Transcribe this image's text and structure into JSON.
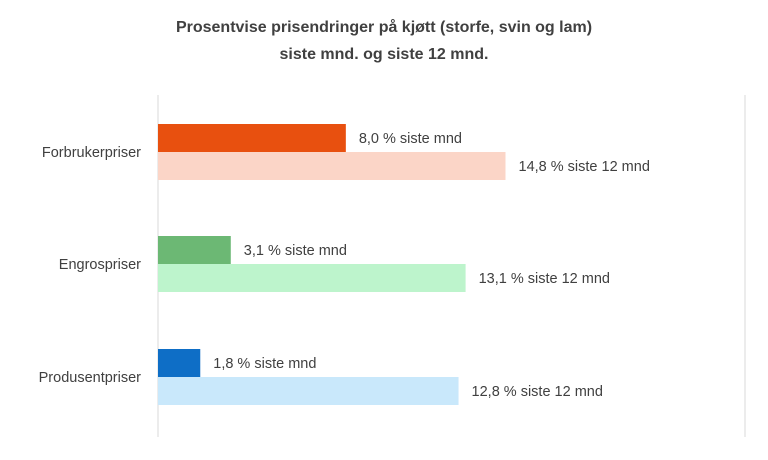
{
  "chart_data": {
    "type": "bar",
    "orientation": "horizontal",
    "title": [
      "Prosentvise prisendringer på kjøtt (storfe, svin og lam)",
      "siste mnd. og siste 12 mnd."
    ],
    "categories": [
      "Forbrukerpriser",
      "Engrospriser",
      "Produsentpriser"
    ],
    "series": [
      {
        "name": "siste mnd",
        "values": [
          8.0,
          3.1,
          1.8
        ],
        "labels": [
          "8,0 % siste mnd",
          "3,1 % siste mnd",
          "1,8 % siste mnd"
        ],
        "colors": [
          "#E8500F",
          "#6CB874",
          "#0E6EC6"
        ]
      },
      {
        "name": "siste 12 mnd",
        "values": [
          14.8,
          13.1,
          12.8
        ],
        "labels": [
          "14,8 % siste 12 mnd",
          "13,1 % siste 12 mnd",
          "12,8 % siste 12 mnd"
        ],
        "colors": [
          "#FBD5C7",
          "#BDF4CC",
          "#C9E8FB"
        ]
      }
    ],
    "xlim": [
      0,
      25
    ],
    "grid": false,
    "legend": "none"
  }
}
